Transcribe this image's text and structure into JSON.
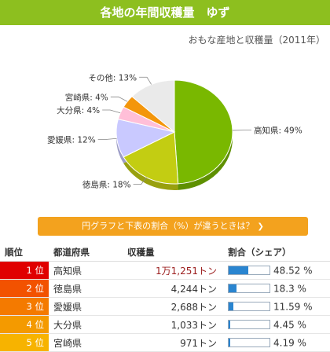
{
  "header": {
    "title": "各地の年間収穫量　ゆず"
  },
  "subtitle": "おもな産地と収穫量（2011年）",
  "chart_data": {
    "type": "pie",
    "labels": [
      "高知県",
      "徳島県",
      "愛媛県",
      "大分県",
      "宮崎県",
      "その他"
    ],
    "values": [
      49,
      18,
      12,
      4,
      4,
      13
    ],
    "slice_labels": [
      "高知県: 49%",
      "徳島県: 18%",
      "愛媛県: 12%",
      "大分県: 4%",
      "宮崎県: 4%",
      "その他: 13%"
    ],
    "colors": [
      "#79b800",
      "#c3cd12",
      "#c9c9ff",
      "#ffbfd8",
      "#f3960c",
      "#eaeaea"
    ]
  },
  "note_button": {
    "label": "円グラフと下表の割合（%）が違うときは？",
    "arrow": "❯"
  },
  "table": {
    "headers": [
      "順位",
      "都道府県",
      "収穫量",
      "割合（シェア）"
    ],
    "rows": [
      {
        "rank": "1 位",
        "pref": "高知県",
        "amount": "1万1,251トン",
        "share": 48.52,
        "share_label": "48.52 %",
        "rank_color": "#e00000"
      },
      {
        "rank": "2 位",
        "pref": "徳島県",
        "amount": "4,244トン",
        "share": 18.3,
        "share_label": "18.3 %",
        "rank_color": "#f25200"
      },
      {
        "rank": "3 位",
        "pref": "愛媛県",
        "amount": "2,688トン",
        "share": 11.59,
        "share_label": "11.59 %",
        "rank_color": "#f47a00"
      },
      {
        "rank": "4 位",
        "pref": "大分県",
        "amount": "1,033トン",
        "share": 4.45,
        "share_label": "4.45 %",
        "rank_color": "#f49a00"
      },
      {
        "rank": "5 位",
        "pref": "宮崎県",
        "amount": "971トン",
        "share": 4.19,
        "share_label": "4.19 %",
        "rank_color": "#f7b300"
      }
    ]
  }
}
